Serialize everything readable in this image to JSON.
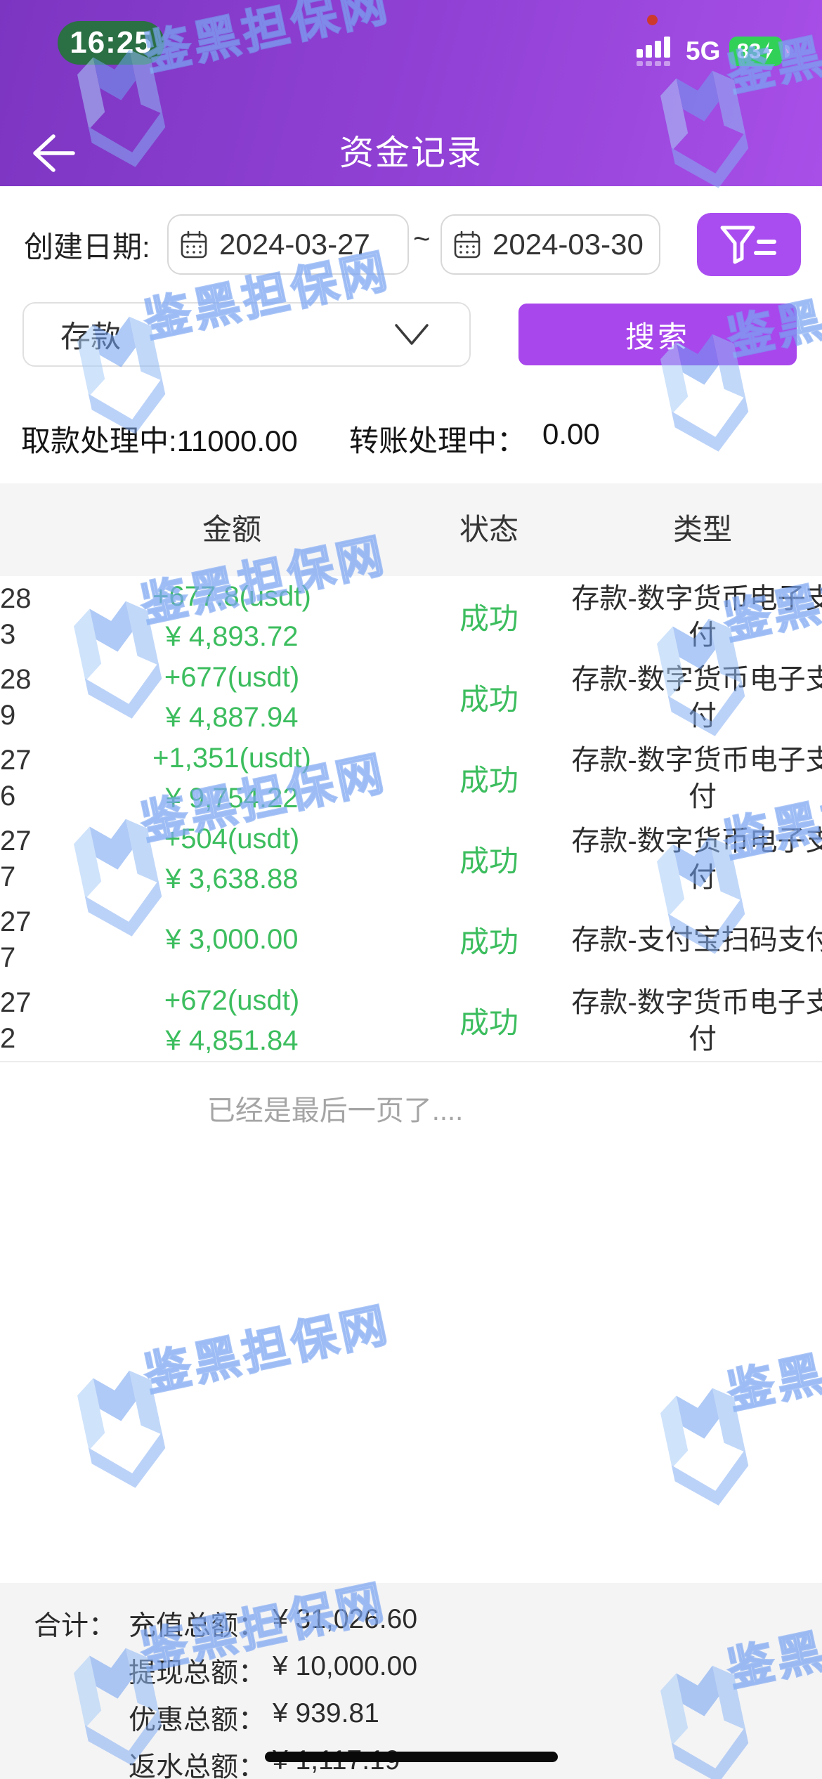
{
  "status_bar": {
    "time": "16:25",
    "network": "5G",
    "battery_percent": "83"
  },
  "header": {
    "title": "资金记录"
  },
  "filters": {
    "date_label": "创建日期:",
    "date_from": "2024-03-27",
    "range_separator": "~",
    "date_to": "2024-03-30",
    "type_selected": "存款",
    "search_label": "搜索"
  },
  "processing": {
    "withdraw_label": "取款处理中:",
    "withdraw_value": "11000.00",
    "transfer_label": "转账处理中：",
    "transfer_value": "0.00"
  },
  "table": {
    "columns": {
      "amount": "金额",
      "status": "状态",
      "type": "类型"
    },
    "rows": [
      {
        "date_frag1": "28",
        "date_frag2": "3",
        "usdt": "+677.8(usdt)",
        "cny": "¥ 4,893.72",
        "status": "成功",
        "type": "存款-数字货币电子支付"
      },
      {
        "date_frag1": "28",
        "date_frag2": "9",
        "usdt": "+677(usdt)",
        "cny": "¥ 4,887.94",
        "status": "成功",
        "type": "存款-数字货币电子支付"
      },
      {
        "date_frag1": "27",
        "date_frag2": "6",
        "usdt": "+1,351(usdt)",
        "cny": "¥ 9,754.22",
        "status": "成功",
        "type": "存款-数字货币电子支付"
      },
      {
        "date_frag1": "27",
        "date_frag2": "7",
        "usdt": "+504(usdt)",
        "cny": "¥ 3,638.88",
        "status": "成功",
        "type": "存款-数字货币电子支付"
      },
      {
        "date_frag1": "27",
        "date_frag2": "7",
        "usdt": "",
        "cny": "¥ 3,000.00",
        "status": "成功",
        "type": "存款-支付宝扫码支付"
      },
      {
        "date_frag1": "27",
        "date_frag2": "2",
        "usdt": "+672(usdt)",
        "cny": "¥ 4,851.84",
        "status": "成功",
        "type": "存款-数字货币电子支付"
      }
    ],
    "end_note": "已经是最后一页了...."
  },
  "summary": {
    "total_label": "合计：",
    "lines": [
      {
        "label": "充值总额：",
        "value": "¥ 31,026.60"
      },
      {
        "label": "提现总额：",
        "value": "¥ 10,000.00"
      },
      {
        "label": "优惠总额：",
        "value": "¥ 939.81"
      },
      {
        "label": "返水总额：",
        "value": "¥ 1,117.19"
      }
    ]
  },
  "watermark": {
    "text": "鉴黑担保网"
  },
  "colors": {
    "accent_purple": "#a847ec",
    "header_gradient_start": "#7c35c1",
    "header_gradient_end": "#a84fe8",
    "success_green": "#3cbd5e",
    "time_pill_green": "#2b6f44",
    "battery_green": "#31d158",
    "watermark_blue": "#76a2f0"
  }
}
